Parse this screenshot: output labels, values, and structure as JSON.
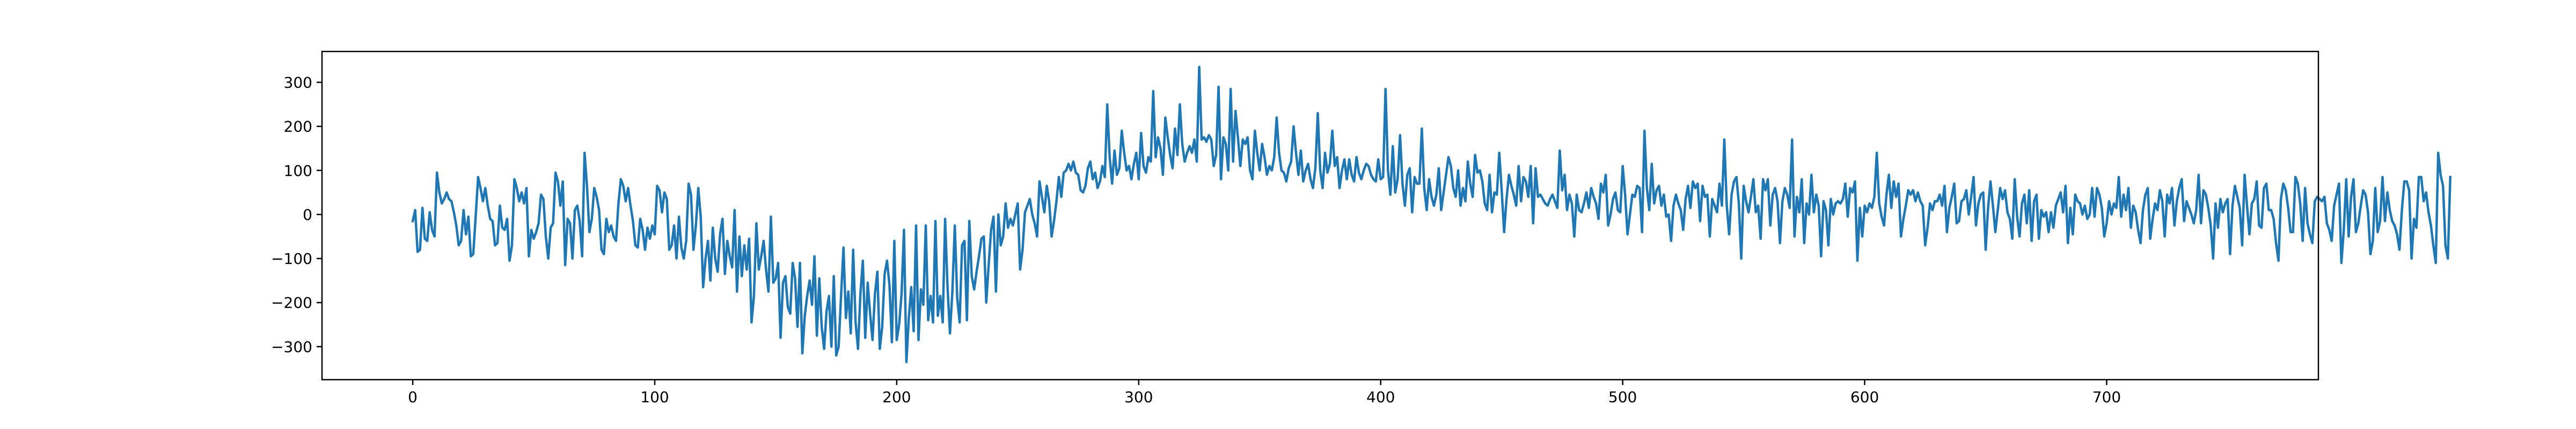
{
  "chart_data": {
    "type": "line",
    "title": "",
    "xlabel": "",
    "ylabel": "",
    "xlim": [
      -37.5,
      787.5
    ],
    "ylim": [
      -375,
      370
    ],
    "x_ticks": [
      0,
      100,
      200,
      300,
      400,
      500,
      600,
      700
    ],
    "y_ticks": [
      -300,
      -200,
      -100,
      0,
      100,
      200,
      300
    ],
    "grid": false,
    "legend": "none",
    "line_color": "#1f77b4",
    "series": [
      {
        "x_start": 0,
        "x_step": 1,
        "values": [
          -15,
          10,
          -85,
          -80,
          15,
          -55,
          -60,
          5,
          -35,
          -50,
          95,
          50,
          25,
          35,
          50,
          35,
          30,
          5,
          -25,
          -70,
          -60,
          10,
          -45,
          -5,
          -95,
          -90,
          -5,
          85,
          60,
          30,
          60,
          20,
          -10,
          -15,
          -70,
          -65,
          20,
          -30,
          -35,
          -10,
          -105,
          -70,
          80,
          60,
          30,
          50,
          25,
          60,
          -95,
          -35,
          -55,
          -40,
          -20,
          45,
          35,
          -50,
          -100,
          -30,
          -20,
          95,
          75,
          20,
          75,
          -115,
          -10,
          -20,
          -100,
          10,
          20,
          -15,
          -95,
          140,
          65,
          -40,
          -10,
          60,
          40,
          10,
          -80,
          -90,
          -10,
          -40,
          -25,
          -50,
          -60,
          25,
          80,
          65,
          30,
          60,
          20,
          -15,
          -70,
          -75,
          -10,
          -35,
          -80,
          -30,
          -55,
          -25,
          -45,
          65,
          55,
          5,
          50,
          35,
          -80,
          -70,
          -25,
          -100,
          -5,
          -75,
          -100,
          -60,
          70,
          45,
          -80,
          -25,
          60,
          -5,
          -165,
          -100,
          -60,
          -150,
          -30,
          -100,
          -130,
          -45,
          -10,
          -135,
          -60,
          -95,
          -120,
          10,
          -175,
          -50,
          -140,
          -70,
          -125,
          -55,
          -245,
          -185,
          -20,
          -125,
          -95,
          -60,
          -125,
          -175,
          -5,
          -155,
          -145,
          -110,
          -280,
          -155,
          -140,
          -210,
          -225,
          -110,
          -145,
          -255,
          -110,
          -315,
          -230,
          -185,
          -150,
          -205,
          -95,
          -275,
          -145,
          -255,
          -305,
          -220,
          -185,
          -300,
          -140,
          -320,
          -300,
          -185,
          -75,
          -235,
          -175,
          -270,
          -80,
          -245,
          -305,
          -180,
          -105,
          -280,
          -155,
          -225,
          -285,
          -180,
          -130,
          -305,
          -255,
          -135,
          -105,
          -160,
          -290,
          -60,
          -285,
          -250,
          -180,
          -35,
          -335,
          -235,
          -165,
          -265,
          -25,
          -285,
          -170,
          -205,
          -25,
          -240,
          -185,
          -245,
          -15,
          -230,
          -185,
          -245,
          -10,
          -165,
          -270,
          -175,
          -25,
          -190,
          -245,
          -70,
          -60,
          -240,
          -15,
          -140,
          -170,
          -130,
          -95,
          -55,
          -50,
          -200,
          -115,
          -35,
          -5,
          -175,
          0,
          -70,
          -50,
          25,
          -30,
          -10,
          -25,
          0,
          25,
          -125,
          -80,
          5,
          20,
          35,
          0,
          -20,
          -50,
          75,
          40,
          5,
          65,
          30,
          -50,
          -15,
          30,
          85,
          40,
          95,
          100,
          115,
          100,
          120,
          95,
          90,
          55,
          50,
          65,
          105,
          120,
          80,
          95,
          60,
          75,
          110,
          85,
          250,
          130,
          70,
          145,
          90,
          105,
          190,
          140,
          100,
          110,
          80,
          115,
          140,
          80,
          185,
          110,
          95,
          130,
          120,
          280,
          130,
          175,
          150,
          90,
          220,
          175,
          135,
          105,
          195,
          135,
          250,
          160,
          120,
          140,
          155,
          140,
          170,
          120,
          335,
          170,
          175,
          165,
          180,
          170,
          110,
          135,
          290,
          80,
          175,
          160,
          100,
          285,
          120,
          235,
          175,
          110,
          170,
          160,
          175,
          100,
          80,
          190,
          140,
          100,
          160,
          130,
          90,
          110,
          100,
          130,
          220,
          140,
          100,
          95,
          75,
          105,
          120,
          200,
          140,
          90,
          145,
          75,
          100,
          115,
          80,
          60,
          105,
          230,
          100,
          60,
          140,
          95,
          115,
          190,
          110,
          130,
          60,
          100,
          125,
          80,
          125,
          90,
          75,
          130,
          95,
          80,
          100,
          115,
          110,
          90,
          80,
          75,
          125,
          80,
          85,
          285,
          100,
          45,
          155,
          50,
          80,
          180,
          70,
          20,
          90,
          105,
          5,
          85,
          70,
          70,
          195,
          60,
          10,
          80,
          40,
          20,
          45,
          105,
          10,
          50,
          90,
          130,
          110,
          60,
          40,
          100,
          20,
          60,
          30,
          120,
          70,
          40,
          135,
          95,
          100,
          75,
          25,
          10,
          90,
          5,
          50,
          45,
          140,
          55,
          -40,
          35,
          90,
          65,
          45,
          20,
          110,
          30,
          85,
          75,
          40,
          110,
          -20,
          105,
          40,
          45,
          35,
          25,
          20,
          35,
          45,
          30,
          15,
          145,
          55,
          90,
          10,
          45,
          25,
          -50,
          45,
          10,
          5,
          25,
          50,
          15,
          60,
          40,
          25,
          -10,
          70,
          50,
          90,
          -25,
          0,
          35,
          50,
          10,
          5,
          110,
          45,
          -45,
          0,
          45,
          40,
          65,
          60,
          -40,
          190,
          60,
          10,
          115,
          25,
          55,
          65,
          20,
          45,
          -5,
          0,
          -60,
          20,
          45,
          25,
          10,
          -35,
          35,
          65,
          15,
          75,
          60,
          70,
          -15,
          65,
          40,
          45,
          -50,
          35,
          20,
          5,
          70,
          20,
          170,
          20,
          -45,
          45,
          75,
          85,
          25,
          -100,
          65,
          30,
          5,
          40,
          80,
          5,
          20,
          -55,
          80,
          55,
          80,
          -25,
          45,
          60,
          30,
          -65,
          30,
          60,
          45,
          15,
          170,
          -50,
          40,
          5,
          80,
          -65,
          25,
          0,
          90,
          5,
          45,
          20,
          -95,
          30,
          10,
          -70,
          35,
          0,
          25,
          30,
          25,
          35,
          70,
          -5,
          60,
          50,
          75,
          -105,
          15,
          -50,
          20,
          5,
          25,
          15,
          40,
          140,
          25,
          -5,
          -25,
          45,
          90,
          15,
          75,
          40,
          70,
          -50,
          -10,
          20,
          55,
          45,
          55,
          30,
          50,
          30,
          20,
          -70,
          -30,
          25,
          10,
          30,
          30,
          45,
          20,
          65,
          -40,
          15,
          40,
          70,
          -20,
          -15,
          30,
          35,
          55,
          0,
          40,
          85,
          -25,
          25,
          45,
          50,
          -80,
          15,
          75,
          20,
          -40,
          10,
          60,
          35,
          55,
          5,
          -10,
          -55,
          80,
          -5,
          -50,
          25,
          45,
          -20,
          55,
          -60,
          30,
          45,
          -55,
          10,
          -5,
          5,
          -40,
          5,
          -30,
          20,
          35,
          50,
          5,
          65,
          -65,
          15,
          -45,
          45,
          30,
          25,
          0,
          20,
          -10,
          0,
          60,
          -5,
          60,
          45,
          15,
          -50,
          -20,
          30,
          0,
          25,
          15,
          85,
          -5,
          45,
          10,
          60,
          -30,
          20,
          5,
          -35,
          -65,
          10,
          45,
          60,
          -55,
          -10,
          25,
          10,
          55,
          30,
          -50,
          45,
          25,
          60,
          -25,
          30,
          60,
          80,
          -15,
          30,
          15,
          0,
          -20,
          10,
          90,
          -20,
          55,
          45,
          15,
          -25,
          -100,
          25,
          -30,
          35,
          5,
          25,
          35,
          -90,
          20,
          65,
          40,
          15,
          -70,
          90,
          20,
          -45,
          25,
          35,
          75,
          -25,
          -30,
          60,
          70,
          10,
          10,
          -10,
          -65,
          -105,
          35,
          70,
          55,
          15,
          -40,
          -40,
          85,
          70,
          25,
          -60,
          60,
          -20,
          -45,
          -65,
          30,
          40,
          35,
          30,
          40,
          -20,
          -35,
          -60,
          20,
          45,
          70,
          -110,
          -35,
          80,
          -50,
          40,
          80,
          -40,
          -20,
          20,
          55,
          45,
          5,
          -90,
          -60,
          60,
          -40,
          -15,
          85,
          -15,
          50,
          10,
          -15,
          -25,
          -45,
          -80,
          10,
          75,
          75,
          55,
          -100,
          -10,
          -30,
          85,
          85,
          30,
          50,
          5,
          -25,
          -70,
          -110,
          140,
          90,
          65,
          -70,
          -100,
          85
        ]
      }
    ]
  }
}
